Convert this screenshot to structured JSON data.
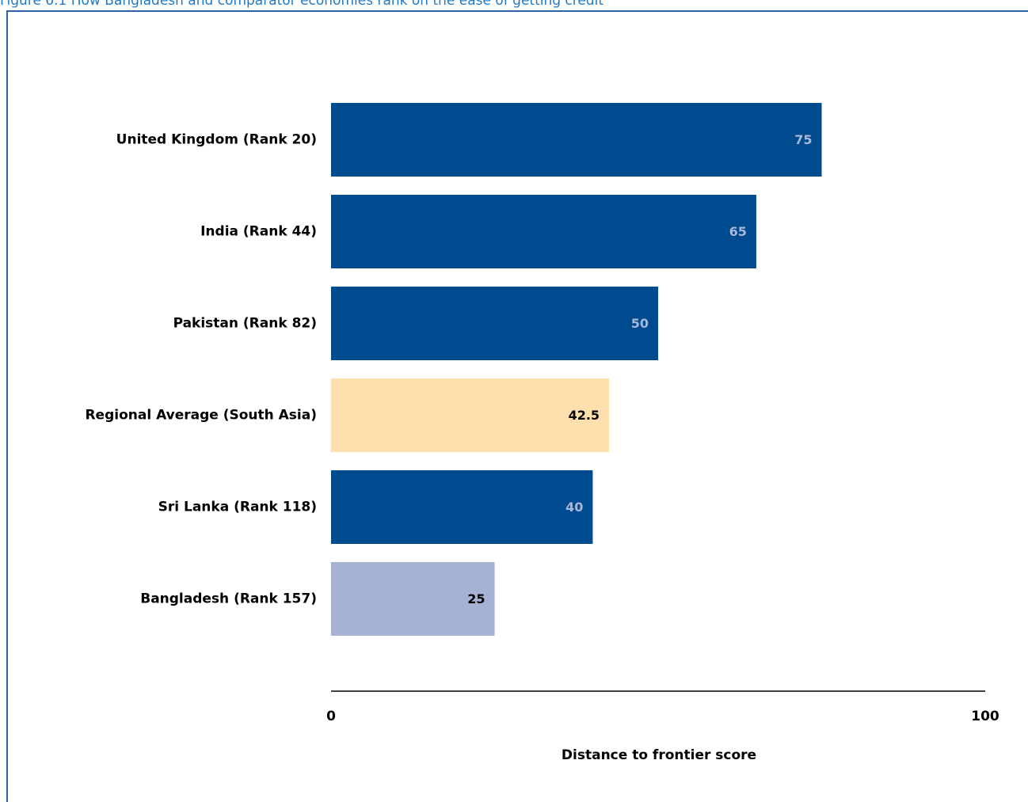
{
  "caption": "Figure 6.1 How Bangladesh and comparator economies rank on the ease of getting credit",
  "colors": {
    "caption": "#1f7ac6",
    "frame": "#2f63a8",
    "default_bar": "#004a8f",
    "regional_bar": "#fde0ad",
    "focus_bar": "#a6b2d3",
    "light_value_text": "#a8b8d8",
    "dark_value_text": "#000000",
    "axis": "#000000"
  },
  "chart_data": {
    "type": "bar",
    "orientation": "horizontal",
    "categories": [
      "United Kingdom (Rank 20)",
      "India (Rank 44)",
      "Pakistan (Rank 82)",
      "Regional Average (South Asia)",
      "Sri Lanka (Rank 118)",
      "Bangladesh (Rank 157)"
    ],
    "values": [
      75,
      65,
      50,
      42.5,
      40,
      25
    ],
    "value_labels": [
      "75",
      "65",
      "50",
      "42.5",
      "40",
      "25"
    ],
    "bar_styles": [
      "default",
      "default",
      "default",
      "regional",
      "default",
      "focus"
    ],
    "xlabel": "Distance to frontier score",
    "xlim": [
      0,
      100
    ],
    "x_ticks": [
      "0",
      "100"
    ],
    "grid": false,
    "legend": "none"
  }
}
